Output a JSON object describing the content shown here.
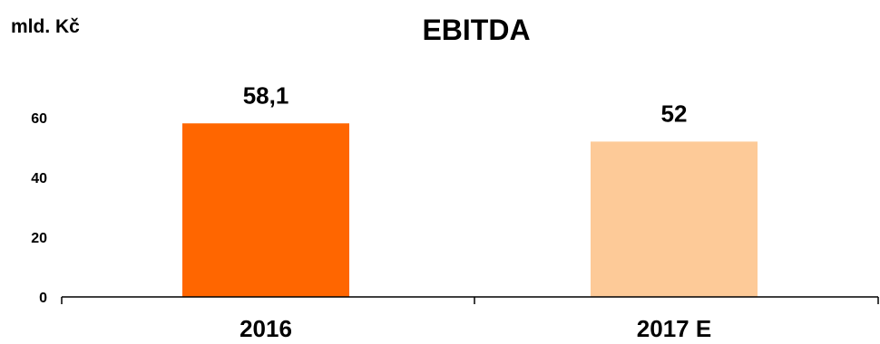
{
  "chart_data": {
    "type": "bar",
    "title": "EBITDA",
    "unit_label": "mld. Kč",
    "categories": [
      "2016",
      "2017 E"
    ],
    "values": [
      58.1,
      52
    ],
    "value_labels": [
      "58,1",
      "52"
    ],
    "colors": [
      "#FF6600",
      "#FDCA98"
    ],
    "ylim": [
      0,
      60
    ],
    "yticks": [
      0,
      20,
      40,
      60
    ],
    "ytick_labels": [
      "0",
      "20",
      "40",
      "60"
    ],
    "xlabel": "",
    "ylabel": "",
    "grid": false,
    "legend": "none"
  }
}
